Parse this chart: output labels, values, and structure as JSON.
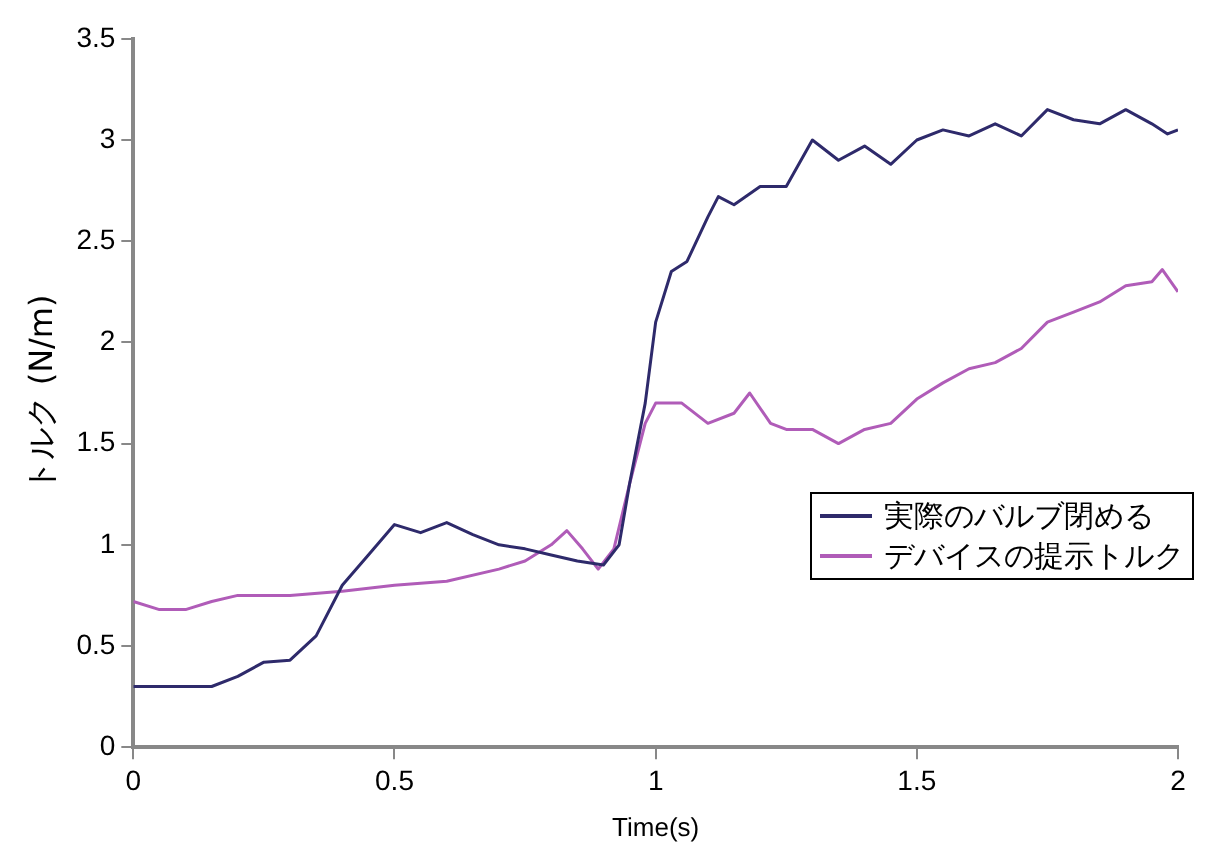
{
  "chart_data": {
    "type": "line",
    "xlabel": "Time(s)",
    "ylabel": "トルク (N/m)",
    "xlim": [
      0,
      2
    ],
    "xticks": [
      0,
      0.5,
      1,
      1.5,
      2
    ],
    "ylim": [
      0,
      3.5
    ],
    "yticks": [
      0,
      0.5,
      1,
      1.5,
      2,
      2.5,
      3,
      3.5
    ],
    "grid": false,
    "legend": "right",
    "marker": "none",
    "line_style": "solid",
    "series": [
      {
        "name": "実際のバルブ閉める",
        "color": "#2e2a6b",
        "x": [
          0,
          0.15,
          0.2,
          0.25,
          0.3,
          0.35,
          0.4,
          0.45,
          0.5,
          0.55,
          0.6,
          0.65,
          0.7,
          0.75,
          0.8,
          0.85,
          0.9,
          0.93,
          0.95,
          0.98,
          1,
          1.03,
          1.06,
          1.1,
          1.12,
          1.15,
          1.2,
          1.25,
          1.3,
          1.35,
          1.4,
          1.45,
          1.5,
          1.55,
          1.6,
          1.65,
          1.7,
          1.75,
          1.8,
          1.85,
          1.9,
          1.95,
          1.98,
          2
        ],
        "values": [
          0.3,
          0.3,
          0.35,
          0.42,
          0.43,
          0.55,
          0.8,
          0.95,
          1.1,
          1.06,
          1.11,
          1.05,
          1,
          0.98,
          0.95,
          0.92,
          0.9,
          1,
          1.3,
          1.7,
          2.1,
          2.35,
          2.4,
          2.62,
          2.72,
          2.68,
          2.77,
          2.77,
          3,
          2.9,
          2.97,
          2.88,
          3,
          3.05,
          3.02,
          3.08,
          3.02,
          3.15,
          3.1,
          3.08,
          3.15,
          3.08,
          3.03,
          3.05
        ]
      },
      {
        "name": "デバイスの提示トルク",
        "color": "#b05cb8",
        "x": [
          0,
          0.05,
          0.1,
          0.15,
          0.2,
          0.3,
          0.4,
          0.5,
          0.6,
          0.7,
          0.75,
          0.8,
          0.83,
          0.86,
          0.89,
          0.92,
          0.95,
          0.98,
          1,
          1.05,
          1.1,
          1.15,
          1.18,
          1.22,
          1.25,
          1.3,
          1.35,
          1.4,
          1.45,
          1.5,
          1.55,
          1.6,
          1.65,
          1.7,
          1.75,
          1.8,
          1.85,
          1.9,
          1.95,
          1.97,
          2
        ],
        "values": [
          0.72,
          0.68,
          0.68,
          0.72,
          0.75,
          0.75,
          0.77,
          0.8,
          0.82,
          0.88,
          0.92,
          1,
          1.07,
          0.98,
          0.88,
          0.98,
          1.3,
          1.6,
          1.7,
          1.7,
          1.6,
          1.65,
          1.75,
          1.6,
          1.57,
          1.57,
          1.5,
          1.57,
          1.6,
          1.72,
          1.8,
          1.87,
          1.9,
          1.97,
          2.1,
          2.15,
          2.2,
          2.28,
          2.3,
          2.36,
          2.25
        ]
      }
    ]
  }
}
